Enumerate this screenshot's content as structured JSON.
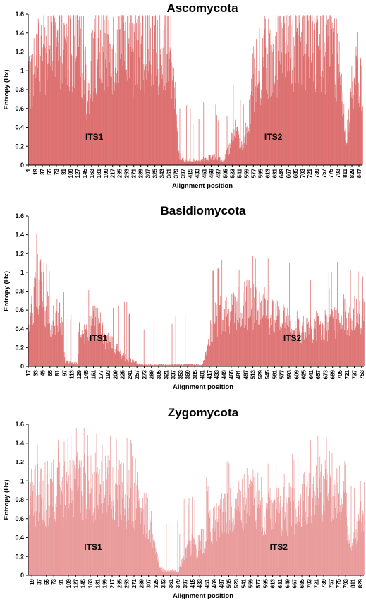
{
  "chart_data": [
    {
      "type": "bar",
      "title": "Ascomycota",
      "xlabel": "Alignment position",
      "ylabel": "Entropy (Hx)",
      "ylim": [
        0,
        1.6
      ],
      "yticks": [
        "0",
        "0.2",
        "0.4",
        "0.6",
        "0.8",
        "1",
        "1.2",
        "1.4",
        "1.6"
      ],
      "xlim": [
        1,
        856
      ],
      "xticks": [
        1,
        19,
        37,
        55,
        73,
        91,
        109,
        127,
        145,
        163,
        181,
        199,
        217,
        235,
        253,
        271,
        289,
        307,
        325,
        343,
        361,
        379,
        397,
        415,
        433,
        451,
        469,
        487,
        505,
        523,
        541,
        559,
        577,
        595,
        613,
        631,
        649,
        667,
        685,
        703,
        721,
        739,
        757,
        775,
        793,
        811,
        829,
        847
      ],
      "annotations": [
        {
          "text": "ITS1",
          "x": 170,
          "y": 0.3
        },
        {
          "text": "ITS2",
          "x": 628,
          "y": 0.3
        }
      ],
      "color": "#d96262",
      "profile": [
        [
          1,
          0.95
        ],
        [
          20,
          1.1
        ],
        [
          40,
          1.2
        ],
        [
          80,
          1.25
        ],
        [
          120,
          1.3
        ],
        [
          140,
          1.1
        ],
        [
          150,
          0.6
        ],
        [
          160,
          1.2
        ],
        [
          200,
          1.3
        ],
        [
          250,
          1.3
        ],
        [
          300,
          1.3
        ],
        [
          330,
          1.3
        ],
        [
          350,
          1.35
        ],
        [
          365,
          1.3
        ],
        [
          375,
          0.8
        ],
        [
          385,
          0.12
        ],
        [
          400,
          0.05
        ],
        [
          440,
          0.05
        ],
        [
          470,
          0.1
        ],
        [
          500,
          0.05
        ],
        [
          515,
          0.2
        ],
        [
          528,
          0.4
        ],
        [
          545,
          0.2
        ],
        [
          560,
          0.4
        ],
        [
          575,
          1.0
        ],
        [
          580,
          0.95
        ],
        [
          600,
          1.2
        ],
        [
          650,
          1.3
        ],
        [
          700,
          1.35
        ],
        [
          760,
          1.35
        ],
        [
          790,
          1.2
        ],
        [
          805,
          0.6
        ],
        [
          815,
          0.3
        ],
        [
          828,
          0.9
        ],
        [
          840,
          1.1
        ],
        [
          856,
          0.85
        ]
      ]
    },
    {
      "type": "bar",
      "title": "Basidiomycota",
      "xlabel": "Alignment position",
      "ylabel": "Entropy (Hx)",
      "ylim": [
        0,
        1.6
      ],
      "yticks": [
        "0",
        "0.2",
        "0.4",
        "0.6",
        "0.8",
        "1",
        "1.2",
        "1.4",
        "1.6"
      ],
      "xlim": [
        17,
        758
      ],
      "xticks": [
        17,
        33,
        49,
        65,
        81,
        97,
        113,
        129,
        145,
        161,
        177,
        193,
        209,
        225,
        241,
        257,
        273,
        289,
        305,
        321,
        337,
        353,
        369,
        385,
        401,
        417,
        433,
        449,
        465,
        481,
        497,
        513,
        529,
        545,
        561,
        577,
        593,
        609,
        625,
        641,
        657,
        673,
        689,
        705,
        721,
        737,
        753
      ],
      "annotations": [
        {
          "text": "ITS1",
          "x": 172,
          "y": 0.3
        },
        {
          "text": "ITS2",
          "x": 600,
          "y": 0.3
        }
      ],
      "color": "#d96262",
      "profile": [
        [
          17,
          0.3
        ],
        [
          22,
          0.5
        ],
        [
          30,
          0.9
        ],
        [
          40,
          1.0
        ],
        [
          50,
          0.85
        ],
        [
          60,
          0.6
        ],
        [
          70,
          0.5
        ],
        [
          80,
          0.6
        ],
        [
          90,
          0.5
        ],
        [
          98,
          0.05
        ],
        [
          125,
          0.03
        ],
        [
          130,
          0.45
        ],
        [
          145,
          0.4
        ],
        [
          160,
          0.5
        ],
        [
          175,
          0.45
        ],
        [
          190,
          0.3
        ],
        [
          210,
          0.2
        ],
        [
          230,
          0.1
        ],
        [
          250,
          0.05
        ],
        [
          265,
          0.02
        ],
        [
          400,
          0.02
        ],
        [
          412,
          0.2
        ],
        [
          425,
          0.5
        ],
        [
          440,
          0.6
        ],
        [
          460,
          0.6
        ],
        [
          480,
          0.65
        ],
        [
          500,
          0.7
        ],
        [
          520,
          0.7
        ],
        [
          545,
          0.6
        ],
        [
          570,
          0.55
        ],
        [
          600,
          0.5
        ],
        [
          630,
          0.4
        ],
        [
          650,
          0.45
        ],
        [
          670,
          0.5
        ],
        [
          690,
          0.45
        ],
        [
          710,
          0.6
        ],
        [
          730,
          0.55
        ],
        [
          758,
          0.6
        ]
      ]
    },
    {
      "type": "bar",
      "title": "Zygomycota",
      "xlabel": "Alignment position",
      "ylabel": "Entropy (Hx)",
      "ylim": [
        0,
        1.6
      ],
      "yticks": [
        "0",
        "0.2",
        "0.4",
        "0.6",
        "0.8",
        "1",
        "1.2",
        "1.4",
        "1.6"
      ],
      "xlim": [
        10,
        838
      ],
      "xticks": [
        19,
        37,
        55,
        73,
        91,
        109,
        127,
        145,
        163,
        181,
        199,
        217,
        235,
        253,
        271,
        289,
        307,
        325,
        343,
        361,
        379,
        397,
        415,
        433,
        451,
        469,
        487,
        505,
        523,
        541,
        559,
        577,
        595,
        613,
        631,
        649,
        667,
        685,
        703,
        721,
        739,
        757,
        775,
        793,
        811,
        829
      ],
      "annotations": [
        {
          "text": "ITS1",
          "x": 170,
          "y": 0.3
        },
        {
          "text": "ITS2",
          "x": 628,
          "y": 0.3
        }
      ],
      "color": "#e89090",
      "profile": [
        [
          10,
          0.8
        ],
        [
          30,
          0.9
        ],
        [
          60,
          0.9
        ],
        [
          100,
          0.95
        ],
        [
          150,
          1.0
        ],
        [
          200,
          0.95
        ],
        [
          250,
          0.9
        ],
        [
          290,
          0.8
        ],
        [
          310,
          0.6
        ],
        [
          320,
          0.3
        ],
        [
          335,
          0.1
        ],
        [
          345,
          0.05
        ],
        [
          380,
          0.05
        ],
        [
          395,
          0.25
        ],
        [
          410,
          0.35
        ],
        [
          425,
          0.3
        ],
        [
          440,
          0.4
        ],
        [
          470,
          0.6
        ],
        [
          500,
          0.7
        ],
        [
          540,
          0.85
        ],
        [
          570,
          0.85
        ],
        [
          600,
          0.7
        ],
        [
          630,
          0.7
        ],
        [
          660,
          0.75
        ],
        [
          700,
          0.85
        ],
        [
          740,
          1.0
        ],
        [
          770,
          1.05
        ],
        [
          790,
          0.8
        ],
        [
          800,
          0.5
        ],
        [
          810,
          0.3
        ],
        [
          830,
          0.6
        ],
        [
          838,
          0.5
        ]
      ]
    }
  ]
}
